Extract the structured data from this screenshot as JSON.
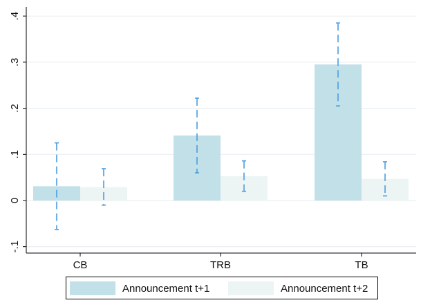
{
  "chart_data": {
    "type": "bar",
    "categories": [
      "CB",
      "TRB",
      "TB"
    ],
    "ylim": [
      -0.1,
      0.4
    ],
    "yticks": [
      -0.1,
      0,
      0.1,
      0.2,
      0.3,
      0.4
    ],
    "ytick_labels": [
      "-.1",
      "0",
      ".1",
      ".2",
      ".3",
      ".4"
    ],
    "grid": true,
    "legend_position": "bottom",
    "series": [
      {
        "name": "Announcement t+1",
        "color": "#c2e0e8",
        "values": [
          0.031,
          0.141,
          0.295
        ],
        "ci_low": [
          -0.063,
          0.06,
          0.205
        ],
        "ci_high": [
          0.125,
          0.222,
          0.385
        ]
      },
      {
        "name": "Announcement t+2",
        "color": "#ecf5f4",
        "values": [
          0.029,
          0.053,
          0.047
        ],
        "ci_low": [
          -0.01,
          0.02,
          0.01
        ],
        "ci_high": [
          0.069,
          0.086,
          0.084
        ]
      }
    ],
    "error_bar_color": "#4a9de0"
  }
}
